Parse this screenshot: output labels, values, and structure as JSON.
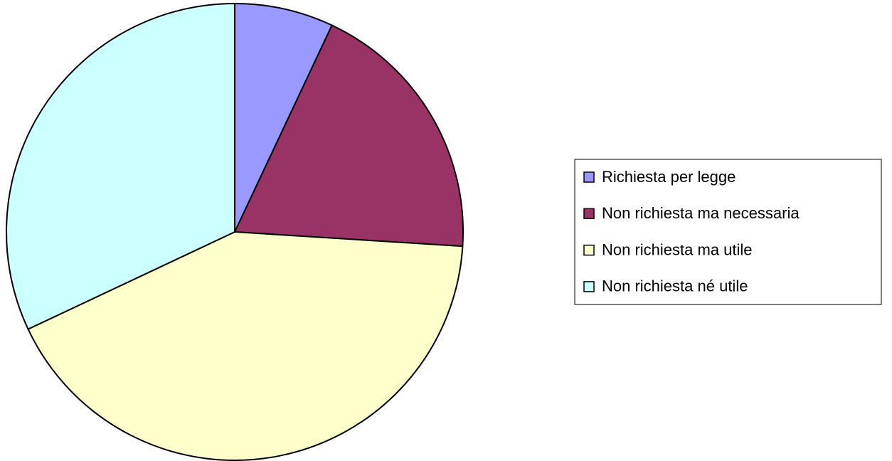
{
  "chart_data": {
    "type": "pie",
    "categories": [
      "Richiesta per legge",
      "Non richiesta ma necessaria",
      "Non richiesta ma utile",
      "Non richiesta né utile"
    ],
    "values": [
      7,
      19,
      42,
      32
    ],
    "colors": [
      "#9999ff",
      "#993366",
      "#ffffcc",
      "#ccffff"
    ],
    "legend": "right"
  }
}
